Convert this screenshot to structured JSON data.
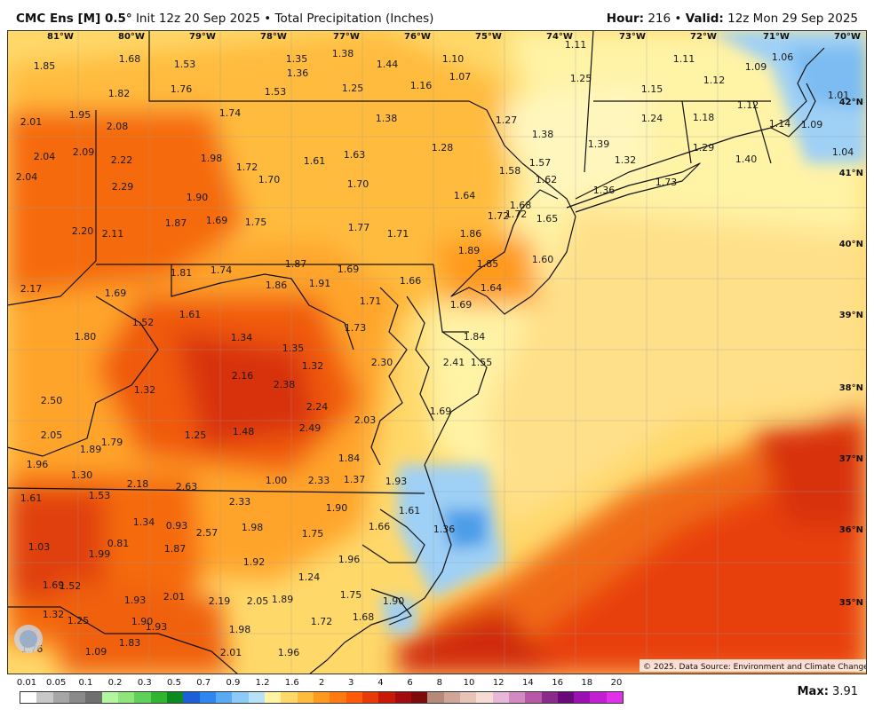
{
  "header": {
    "model": "CMC Ens [M] 0.5°",
    "init": "Init 12z 20 Sep 2025",
    "separator": "•",
    "product": "Total Precipitation (Inches)",
    "hour_label": "Hour:",
    "hour_value": "216",
    "valid_label": "Valid:",
    "valid_value": "12z Mon 29 Sep 2025"
  },
  "map": {
    "longitude_labels": [
      "81°W",
      "80°W",
      "79°W",
      "78°W",
      "77°W",
      "76°W",
      "75°W",
      "74°W",
      "73°W",
      "72°W",
      "71°W",
      "70°W"
    ],
    "latitude_labels": [
      "42°N",
      "41°N",
      "40°N",
      "39°N",
      "38°N",
      "37°N",
      "36°N",
      "35°N"
    ],
    "credit": "© 2025. Data Source: Environment and Climate Change Canada.",
    "logo_text": "WEATHERBELL",
    "point_values": [
      "1.85",
      "1.68",
      "1.53",
      "1.35",
      "1.38",
      "1.44",
      "1.10",
      "1.11",
      "1.11",
      "1.09",
      "1.06",
      "1.36",
      "1.07",
      "1.25",
      "1.15",
      "1.12",
      "1.82",
      "1.76",
      "1.53",
      "1.25",
      "1.16",
      "1.01",
      "1.74",
      "1.95",
      "1.38",
      "1.27",
      "1.24",
      "1.18",
      "1.12",
      "2.01",
      "2.08",
      "1.38",
      "1.39",
      "1.14",
      "1.09",
      "1.63",
      "1.28",
      "1.57",
      "1.29",
      "2.04",
      "2.09",
      "2.22",
      "1.98",
      "1.72",
      "1.61",
      "1.58",
      "1.62",
      "1.32",
      "1.40",
      "1.04",
      "2.04",
      "1.70",
      "1.70",
      "1.73",
      "2.29",
      "1.36",
      "1.90",
      "1.64",
      "1.68",
      "1.87",
      "1.69",
      "1.75",
      "1.72",
      "1.65",
      "2.20",
      "2.11",
      "1.77",
      "1.71",
      "1.86",
      "1.89",
      "1.60",
      "1.85",
      "1.72",
      "1.81",
      "1.74",
      "1.87",
      "1.69",
      "2.17",
      "1.69",
      "1.86",
      "1.91",
      "1.66",
      "1.64",
      "1.71",
      "1.52",
      "1.61",
      "1.73",
      "1.80",
      "1.69",
      "1.84",
      "1.34",
      "1.35",
      "2.30",
      "2.41",
      "1.55",
      "1.32",
      "1.32",
      "2.16",
      "2.38",
      "2.50",
      "2.24",
      "1.69",
      "2.03",
      "1.25",
      "1.48",
      "2.49",
      "2.05",
      "1.89",
      "1.79",
      "1.84",
      "1.96",
      "1.37",
      "1.93",
      "1.30",
      "1.00",
      "2.33",
      "1.61",
      "1.53",
      "2.18",
      "2.63",
      "2.33",
      "1.90",
      "1.61",
      "1.34",
      "0.93",
      "1.98",
      "1.75",
      "1.66",
      "1.36",
      "1.03",
      "0.81",
      "2.57",
      "1.99",
      "1.87",
      "1.96",
      "1.92",
      "1.24",
      "1.69",
      "1.52",
      "2.01",
      "1.93",
      "2.19",
      "2.05",
      "1.89",
      "1.75",
      "1.68",
      "1.32",
      "1.25",
      "1.90",
      "1.93",
      "1.98",
      "1.90",
      "1.76",
      "1.09",
      "1.83",
      "2.01",
      "1.96",
      "1.72",
      "1.58",
      "1.29"
    ]
  },
  "legend": {
    "labels": [
      "0.01",
      "0.05",
      "0.1",
      "0.2",
      "0.3",
      "0.5",
      "0.7",
      "0.9",
      "1.2",
      "1.6",
      "2",
      "3",
      "4",
      "6",
      "8",
      "10",
      "12",
      "14",
      "16",
      "18",
      "20"
    ],
    "colors": [
      "#ffffff",
      "#c8c8c8",
      "#a6a6a6",
      "#8a8a8a",
      "#6f6f6f",
      "#b4f5a0",
      "#8fe57c",
      "#5fd15a",
      "#2fb52f",
      "#0d8a1f",
      "#1d5fd6",
      "#2f86f0",
      "#59a9f5",
      "#8ccaf7",
      "#b7e1f7",
      "#fff3a6",
      "#ffd86a",
      "#ffbb3d",
      "#ff9a1f",
      "#ff7a10",
      "#ff5a0a",
      "#e83a08",
      "#c71a06",
      "#a30c0c",
      "#7e0a0a",
      "#b58a7a",
      "#cfa698",
      "#e6c4b8",
      "#f5ddd6",
      "#e8b8d8",
      "#d28ac0",
      "#b858a6",
      "#8a2a8a",
      "#6a0a7a",
      "#9a10b0",
      "#c020d0",
      "#e030e8"
    ],
    "max_label": "Max:",
    "max_value": "3.91"
  },
  "palette": {
    "land_yellow": "#fff3a6",
    "light_orange": "#ffd86a",
    "orange": "#ffbb3d",
    "deep_orange": "#ff9a1f",
    "red_orange": "#f56a10",
    "red": "#e03a0c",
    "dark_red": "#c41e0a",
    "light_blue": "#9fd0f5",
    "blue": "#4b9ee8"
  }
}
